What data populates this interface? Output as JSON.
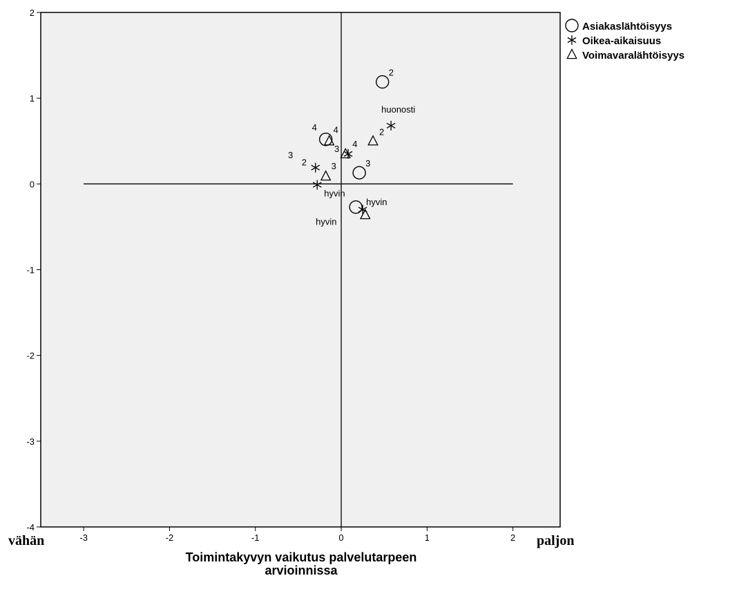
{
  "chart_data": {
    "type": "scatter",
    "xlabel": "Toimintakyvyn vaikutus palvelutarpeen arvioinnissa",
    "xlabel_lines": [
      "Toimintakyvyn vaikutus palvelutarpeen",
      "arvioinnissa"
    ],
    "ylabel": "",
    "xlim": [
      -3.5,
      2.55
    ],
    "ylim": [
      -4,
      2
    ],
    "xticks": [
      -3,
      -2,
      -1,
      0,
      1,
      2
    ],
    "yticks": [
      -4,
      -3,
      -2,
      -1,
      0,
      1,
      2
    ],
    "reference_lines": {
      "horizontal": {
        "y": 0,
        "x_from": -3,
        "x_to": 2
      },
      "vertical": {
        "x": 0,
        "y_from": -4,
        "y_to": 2
      }
    },
    "x_end_labels": {
      "left": "vähän",
      "right": "paljon"
    },
    "grid": false,
    "legend": "right-top",
    "series": [
      {
        "name": "Asiakaslähtöisyys",
        "marker": "circle",
        "points": [
          {
            "x": 0.48,
            "y": 1.19,
            "label": "2"
          },
          {
            "x": -0.18,
            "y": 0.52,
            "label": "4"
          },
          {
            "x": 0.21,
            "y": 0.13,
            "label": "3"
          },
          {
            "x": 0.17,
            "y": -0.27,
            "label": "hyvin"
          }
        ]
      },
      {
        "name": "Oikea-aikaisuus",
        "marker": "star",
        "points": [
          {
            "x": 0.58,
            "y": 0.68,
            "label": "huonosti"
          },
          {
            "x": 0.08,
            "y": 0.35,
            "label": "3"
          },
          {
            "x": -0.3,
            "y": 0.19,
            "label": "2"
          },
          {
            "x": -0.28,
            "y": -0.01,
            "label": "hyvin"
          },
          {
            "x": 0.25,
            "y": -0.3,
            "label": "hyvin"
          }
        ]
      },
      {
        "name": "Voimavaralähtöisyys",
        "marker": "triangle",
        "points": [
          {
            "x": 0.37,
            "y": 0.5,
            "label": "2"
          },
          {
            "x": -0.14,
            "y": 0.5,
            "label": "4"
          },
          {
            "x": 0.05,
            "y": 0.35,
            "label": "4"
          },
          {
            "x": -0.18,
            "y": 0.09,
            "label": "3"
          },
          {
            "x": 0.28,
            "y": -0.36,
            "label": ""
          }
        ]
      }
    ]
  }
}
